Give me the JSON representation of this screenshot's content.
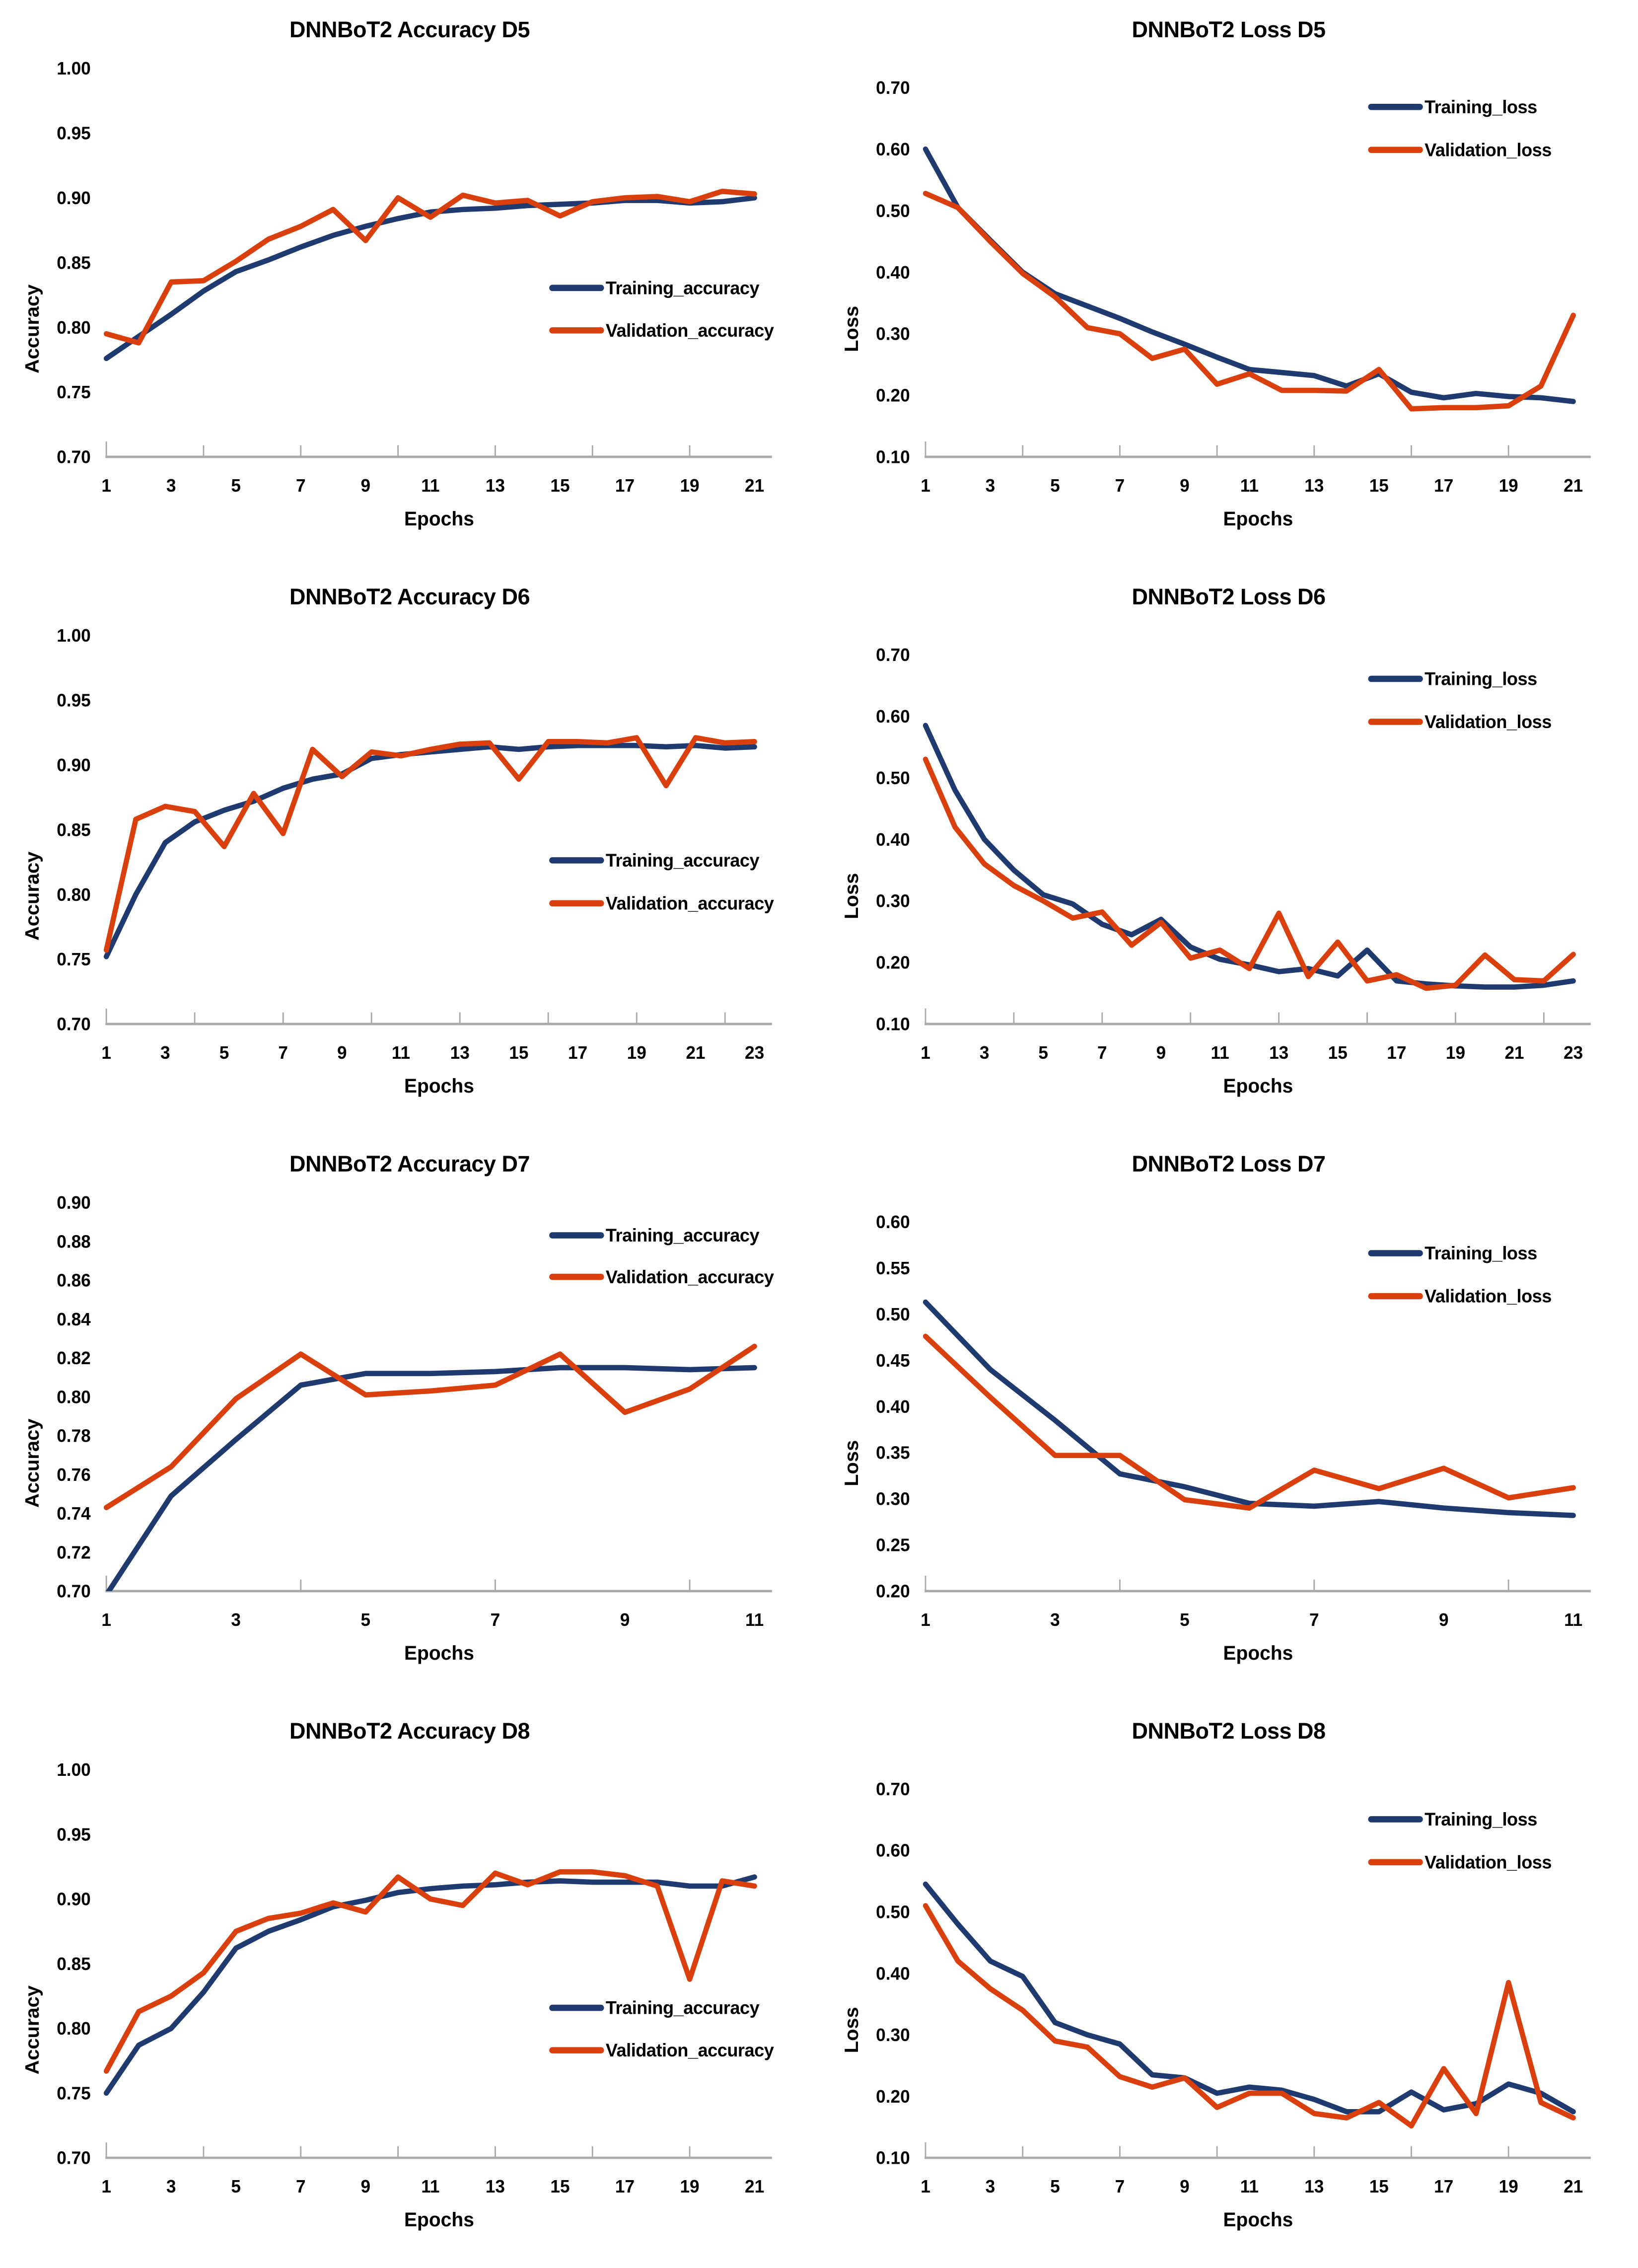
{
  "colors": {
    "training": "#1f3a6e",
    "validation": "#d9400e",
    "axis": "#a9a9a9",
    "text": "#000000",
    "background": "#ffffff"
  },
  "chart_data": [
    {
      "type": "line",
      "title": "DNNBoT2 Accuracy D5",
      "xlabel": "Epochs",
      "ylabel": "Accuracy",
      "x": [
        1,
        2,
        3,
        4,
        5,
        6,
        7,
        8,
        9,
        10,
        11,
        12,
        13,
        14,
        15,
        16,
        17,
        18,
        19,
        20,
        21
      ],
      "xtick_labels": [
        "1",
        "3",
        "5",
        "7",
        "9",
        "11",
        "13",
        "15",
        "17",
        "19",
        "21"
      ],
      "ylim": [
        0.7,
        1.0
      ],
      "yticks": [
        0.7,
        0.75,
        0.8,
        0.85,
        0.9,
        0.95,
        1.0
      ],
      "grid": false,
      "legend_position": "middle-right",
      "legend_anchor": {
        "x": 1127,
        "y": 580,
        "gap": 88
      },
      "series": [
        {
          "name": "Training_accuracy",
          "color_key": "training",
          "values": [
            0.776,
            0.793,
            0.81,
            0.828,
            0.843,
            0.852,
            0.862,
            0.871,
            0.878,
            0.884,
            0.889,
            0.891,
            0.892,
            0.894,
            0.895,
            0.896,
            0.898,
            0.898,
            0.896,
            0.897,
            0.9
          ]
        },
        {
          "name": "Validation_accuracy",
          "color_key": "validation",
          "values": [
            0.795,
            0.788,
            0.835,
            0.836,
            0.851,
            0.868,
            0.878,
            0.891,
            0.867,
            0.9,
            0.885,
            0.902,
            0.896,
            0.898,
            0.886,
            0.897,
            0.9,
            0.901,
            0.897,
            0.905,
            0.903
          ]
        }
      ]
    },
    {
      "type": "line",
      "title": "DNNBoT2 Loss D5",
      "xlabel": "Epochs",
      "ylabel": "Loss",
      "x": [
        1,
        2,
        3,
        4,
        5,
        6,
        7,
        8,
        9,
        10,
        11,
        12,
        13,
        14,
        15,
        16,
        17,
        18,
        19,
        20,
        21
      ],
      "xtick_labels": [
        "1",
        "3",
        "5",
        "7",
        "9",
        "11",
        "13",
        "15",
        "17",
        "19",
        "21"
      ],
      "ylim": [
        0.1,
        0.7
      ],
      "yticks": [
        0.1,
        0.2,
        0.3,
        0.4,
        0.5,
        0.6,
        0.7
      ],
      "grid": false,
      "legend_position": "top-right",
      "legend_anchor": {
        "x": 1127,
        "y": 205,
        "gap": 89
      },
      "series": [
        {
          "name": "Training_loss",
          "color_key": "training",
          "values": [
            0.6,
            0.505,
            0.452,
            0.4,
            0.365,
            0.345,
            0.325,
            0.303,
            0.283,
            0.262,
            0.242,
            0.237,
            0.232,
            0.215,
            0.235,
            0.205,
            0.196,
            0.203,
            0.198,
            0.196,
            0.19
          ]
        },
        {
          "name": "Validation_loss",
          "color_key": "validation",
          "values": [
            0.528,
            0.505,
            0.45,
            0.398,
            0.36,
            0.31,
            0.3,
            0.26,
            0.275,
            0.218,
            0.235,
            0.208,
            0.208,
            0.207,
            0.242,
            0.178,
            0.18,
            0.18,
            0.183,
            0.215,
            0.33
          ]
        }
      ]
    },
    {
      "type": "line",
      "title": "DNNBoT2 Accuracy D6",
      "xlabel": "Epochs",
      "ylabel": "Accuracy",
      "x": [
        1,
        2,
        3,
        4,
        5,
        6,
        7,
        8,
        9,
        10,
        11,
        12,
        13,
        14,
        15,
        16,
        17,
        18,
        19,
        20,
        21,
        22,
        23
      ],
      "xtick_labels": [
        "1",
        "3",
        "5",
        "7",
        "9",
        "11",
        "13",
        "15",
        "17",
        "19",
        "21",
        "23"
      ],
      "ylim": [
        0.7,
        1.0
      ],
      "yticks": [
        0.7,
        0.75,
        0.8,
        0.85,
        0.9,
        0.95,
        1.0
      ],
      "grid": false,
      "legend_position": "middle-right",
      "legend_anchor": {
        "x": 1127,
        "y": 591,
        "gap": 89
      },
      "series": [
        {
          "name": "Training_accuracy",
          "color_key": "training",
          "values": [
            0.752,
            0.8,
            0.84,
            0.856,
            0.865,
            0.872,
            0.882,
            0.889,
            0.893,
            0.905,
            0.908,
            0.91,
            0.912,
            0.914,
            0.912,
            0.914,
            0.915,
            0.915,
            0.915,
            0.914,
            0.915,
            0.913,
            0.914
          ]
        },
        {
          "name": "Validation_accuracy",
          "color_key": "validation",
          "values": [
            0.757,
            0.858,
            0.868,
            0.864,
            0.837,
            0.878,
            0.847,
            0.912,
            0.891,
            0.91,
            0.907,
            0.912,
            0.916,
            0.917,
            0.889,
            0.918,
            0.918,
            0.917,
            0.921,
            0.884,
            0.921,
            0.917,
            0.918
          ]
        }
      ]
    },
    {
      "type": "line",
      "title": "DNNBoT2 Loss D6",
      "xlabel": "Epochs",
      "ylabel": "Loss",
      "x": [
        1,
        2,
        3,
        4,
        5,
        6,
        7,
        8,
        9,
        10,
        11,
        12,
        13,
        14,
        15,
        16,
        17,
        18,
        19,
        20,
        21,
        22,
        23
      ],
      "xtick_labels": [
        "1",
        "3",
        "5",
        "7",
        "9",
        "11",
        "13",
        "15",
        "17",
        "19",
        "21",
        "23"
      ],
      "ylim": [
        0.1,
        0.7
      ],
      "yticks": [
        0.1,
        0.2,
        0.3,
        0.4,
        0.5,
        0.6,
        0.7
      ],
      "grid": false,
      "legend_position": "top-right",
      "legend_anchor": {
        "x": 1127,
        "y": 215,
        "gap": 89
      },
      "series": [
        {
          "name": "Training_loss",
          "color_key": "training",
          "values": [
            0.585,
            0.48,
            0.4,
            0.35,
            0.31,
            0.295,
            0.262,
            0.245,
            0.27,
            0.225,
            0.205,
            0.196,
            0.185,
            0.19,
            0.178,
            0.22,
            0.17,
            0.165,
            0.162,
            0.16,
            0.16,
            0.163,
            0.17
          ]
        },
        {
          "name": "Validation_loss",
          "color_key": "validation",
          "values": [
            0.53,
            0.42,
            0.36,
            0.325,
            0.3,
            0.272,
            0.282,
            0.228,
            0.265,
            0.207,
            0.22,
            0.19,
            0.28,
            0.177,
            0.233,
            0.17,
            0.18,
            0.158,
            0.163,
            0.212,
            0.172,
            0.17,
            0.213
          ]
        }
      ]
    },
    {
      "type": "line",
      "title": "DNNBoT2 Accuracy D7",
      "xlabel": "Epochs",
      "ylabel": "Accuracy",
      "x": [
        1,
        2,
        3,
        4,
        5,
        6,
        7,
        8,
        9,
        10,
        11
      ],
      "xtick_labels": [
        "1",
        "3",
        "5",
        "7",
        "9",
        "11"
      ],
      "ylim": [
        0.7,
        0.9
      ],
      "yticks": [
        0.7,
        0.72,
        0.74,
        0.76,
        0.78,
        0.8,
        0.82,
        0.84,
        0.86,
        0.88,
        0.9
      ],
      "grid": false,
      "legend_position": "top-right",
      "legend_anchor": {
        "x": 1127,
        "y": 193,
        "gap": 86
      },
      "series": [
        {
          "name": "Training_accuracy",
          "color_key": "training",
          "values": [
            0.698,
            0.749,
            0.778,
            0.806,
            0.812,
            0.812,
            0.813,
            0.815,
            0.815,
            0.814,
            0.815
          ]
        },
        {
          "name": "Validation_accuracy",
          "color_key": "validation",
          "values": [
            0.743,
            0.764,
            0.799,
            0.822,
            0.801,
            0.803,
            0.806,
            0.822,
            0.792,
            0.804,
            0.826
          ]
        }
      ]
    },
    {
      "type": "line",
      "title": "DNNBoT2 Loss D7",
      "xlabel": "Epochs",
      "ylabel": "Loss",
      "x": [
        1,
        2,
        3,
        4,
        5,
        6,
        7,
        8,
        9,
        10,
        11
      ],
      "xtick_labels": [
        "1",
        "3",
        "5",
        "7",
        "9",
        "11"
      ],
      "ylim": [
        0.2,
        0.6
      ],
      "yticks": [
        0.2,
        0.25,
        0.3,
        0.35,
        0.4,
        0.45,
        0.5,
        0.55,
        0.6
      ],
      "grid": false,
      "legend_position": "top-right",
      "legend_anchor": {
        "x": 1127,
        "y": 230,
        "gap": 89
      },
      "series": [
        {
          "name": "Training_loss",
          "color_key": "training",
          "values": [
            0.513,
            0.44,
            0.385,
            0.327,
            0.313,
            0.295,
            0.292,
            0.297,
            0.29,
            0.285,
            0.282
          ]
        },
        {
          "name": "Validation_loss",
          "color_key": "validation",
          "values": [
            0.476,
            0.41,
            0.347,
            0.347,
            0.299,
            0.29,
            0.331,
            0.311,
            0.333,
            0.301,
            0.312
          ]
        }
      ]
    },
    {
      "type": "line",
      "title": "DNNBoT2 Accuracy D8",
      "xlabel": "Epochs",
      "ylabel": "Accuracy",
      "x": [
        1,
        2,
        3,
        4,
        5,
        6,
        7,
        8,
        9,
        10,
        11,
        12,
        13,
        14,
        15,
        16,
        17,
        18,
        19,
        20,
        21
      ],
      "xtick_labels": [
        "1",
        "3",
        "5",
        "7",
        "9",
        "11",
        "13",
        "15",
        "17",
        "19",
        "21"
      ],
      "ylim": [
        0.7,
        1.0
      ],
      "yticks": [
        0.7,
        0.75,
        0.8,
        0.85,
        0.9,
        0.95,
        1.0
      ],
      "grid": false,
      "legend_position": "middle-right",
      "legend_anchor": {
        "x": 1127,
        "y": 619,
        "gap": 88
      },
      "series": [
        {
          "name": "Training_accuracy",
          "color_key": "training",
          "values": [
            0.75,
            0.787,
            0.8,
            0.828,
            0.862,
            0.875,
            0.884,
            0.894,
            0.899,
            0.905,
            0.908,
            0.91,
            0.911,
            0.913,
            0.914,
            0.913,
            0.913,
            0.913,
            0.91,
            0.91,
            0.917
          ]
        },
        {
          "name": "Validation_accuracy",
          "color_key": "validation",
          "values": [
            0.767,
            0.813,
            0.825,
            0.843,
            0.875,
            0.885,
            0.889,
            0.897,
            0.89,
            0.917,
            0.9,
            0.895,
            0.92,
            0.911,
            0.921,
            0.921,
            0.918,
            0.91,
            0.838,
            0.914,
            0.91
          ]
        }
      ]
    },
    {
      "type": "line",
      "title": "DNNBoT2 Loss D8",
      "xlabel": "Epochs",
      "ylabel": "Loss",
      "x": [
        1,
        2,
        3,
        4,
        5,
        6,
        7,
        8,
        9,
        10,
        11,
        12,
        13,
        14,
        15,
        16,
        17,
        18,
        19,
        20,
        21
      ],
      "xtick_labels": [
        "1",
        "3",
        "5",
        "7",
        "9",
        "11",
        "13",
        "15",
        "17",
        "19",
        "21"
      ],
      "ylim": [
        0.1,
        0.7
      ],
      "yticks": [
        0.1,
        0.2,
        0.3,
        0.4,
        0.5,
        0.6,
        0.7
      ],
      "grid": false,
      "legend_position": "top-right",
      "legend_anchor": {
        "x": 1127,
        "y": 228,
        "gap": 89
      },
      "series": [
        {
          "name": "Training_loss",
          "color_key": "training",
          "values": [
            0.545,
            0.48,
            0.42,
            0.395,
            0.32,
            0.3,
            0.285,
            0.235,
            0.23,
            0.205,
            0.215,
            0.21,
            0.195,
            0.175,
            0.175,
            0.207,
            0.178,
            0.188,
            0.22,
            0.205,
            0.175
          ]
        },
        {
          "name": "Validation_loss",
          "color_key": "validation",
          "values": [
            0.51,
            0.42,
            0.375,
            0.34,
            0.29,
            0.28,
            0.232,
            0.215,
            0.23,
            0.182,
            0.205,
            0.205,
            0.172,
            0.165,
            0.19,
            0.152,
            0.245,
            0.172,
            0.385,
            0.19,
            0.165
          ]
        }
      ]
    }
  ]
}
